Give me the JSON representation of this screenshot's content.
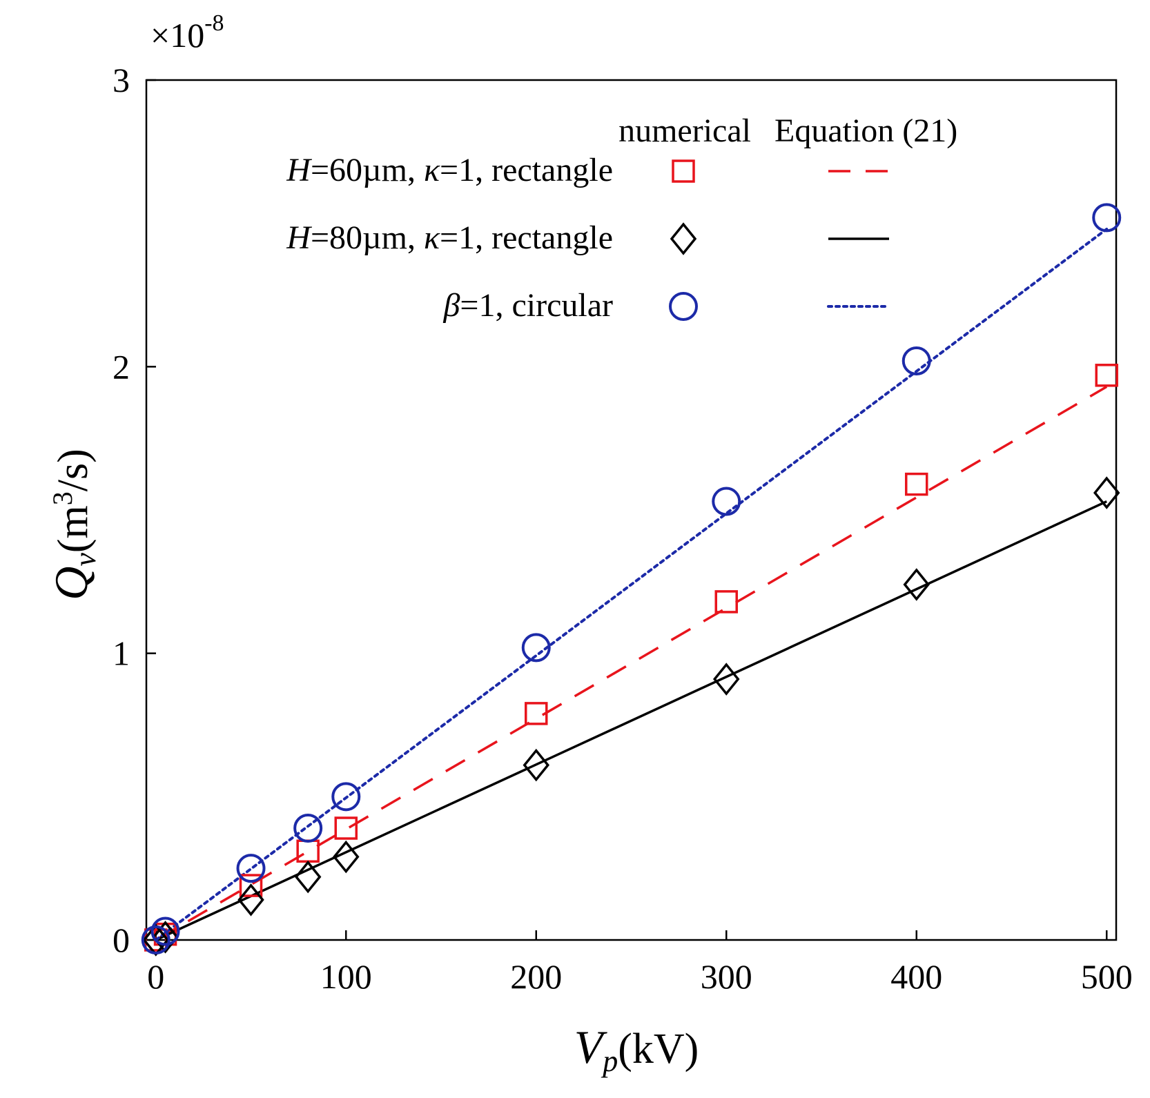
{
  "chart_data": {
    "type": "scatter",
    "xlabel": {
      "main": "V",
      "sub": "p",
      "unit": "(kV)"
    },
    "ylabel": {
      "main": "Q",
      "sub": "v",
      "unit_pre": "(m",
      "unit_sup": "3",
      "unit_post": "/s)"
    },
    "y_multiplier": {
      "prefix": "×10",
      "exponent": "-8"
    },
    "xlim": [
      -5,
      505
    ],
    "ylim": [
      0,
      3
    ],
    "xticks": [
      0,
      100,
      200,
      300,
      400,
      500
    ],
    "xtick_labels": [
      "0",
      "100",
      "200",
      "300",
      "400",
      "500"
    ],
    "yticks": [
      0,
      1,
      2,
      3
    ],
    "ytick_labels": [
      "0",
      "1",
      "2",
      "3"
    ],
    "grid": false,
    "legend": {
      "position": "top-right",
      "header_numerical": "numerical",
      "header_equation": "Equation (21)"
    },
    "series": [
      {
        "name": "H=60µm, κ=1, rectangle",
        "label_parts": [
          {
            "t": "H",
            "italic": true
          },
          {
            "t": "=60µm, ",
            "italic": false
          },
          {
            "t": "κ",
            "italic": true
          },
          {
            "t": "=1, rectangle",
            "italic": false
          }
        ],
        "color": "#e8141c",
        "marker": "square",
        "line_style": "dashed",
        "x": [
          0,
          5,
          50,
          80,
          100,
          200,
          300,
          400,
          500
        ],
        "y": [
          0.0,
          0.02,
          0.19,
          0.31,
          0.39,
          0.79,
          1.18,
          1.59,
          1.97
        ],
        "fit_x": [
          0,
          500
        ],
        "fit_y": [
          0.0,
          1.93
        ]
      },
      {
        "name": "H=80µm, κ=1, rectangle",
        "label_parts": [
          {
            "t": "H",
            "italic": true
          },
          {
            "t": "=80µm, ",
            "italic": false
          },
          {
            "t": "κ",
            "italic": true
          },
          {
            "t": "=1, rectangle",
            "italic": false
          }
        ],
        "color": "#000000",
        "marker": "diamond",
        "line_style": "solid",
        "x": [
          0,
          5,
          50,
          80,
          100,
          200,
          300,
          400,
          500
        ],
        "y": [
          0.0,
          0.01,
          0.14,
          0.22,
          0.29,
          0.61,
          0.91,
          1.24,
          1.56
        ],
        "fit_x": [
          0,
          500
        ],
        "fit_y": [
          0.0,
          1.53
        ]
      },
      {
        "name": "β=1, circular",
        "label_parts": [
          {
            "t": "β",
            "italic": true
          },
          {
            "t": "=1, circular",
            "italic": false
          }
        ],
        "color": "#1c2aa8",
        "marker": "circle",
        "line_style": "dotted",
        "x": [
          0,
          5,
          50,
          80,
          100,
          200,
          300,
          400,
          500
        ],
        "y": [
          0.0,
          0.03,
          0.25,
          0.39,
          0.5,
          1.02,
          1.53,
          2.02,
          2.52
        ],
        "fit_x": [
          0,
          500
        ],
        "fit_y": [
          0.0,
          2.48
        ]
      }
    ]
  }
}
